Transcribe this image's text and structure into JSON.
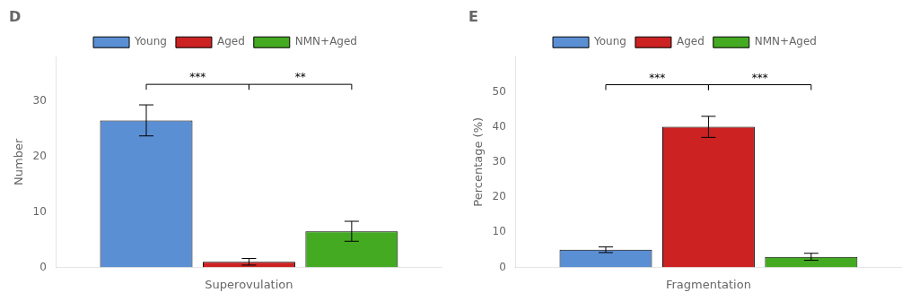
{
  "chart_data": [
    {
      "type": "bar",
      "title": "D",
      "xlabel": "Superovulation",
      "ylabel": "Number",
      "categories": [
        null
      ],
      "series": [
        {
          "name": "Young",
          "color": "#5B8FD4",
          "values": [
            26.5
          ],
          "errors": [
            2.8
          ]
        },
        {
          "name": "Aged",
          "color": "#CC2222",
          "values": [
            1.0
          ],
          "errors": [
            0.6
          ]
        },
        {
          "name": "NMN+Aged",
          "color": "#44AA22",
          "values": [
            6.5
          ],
          "errors": [
            1.8
          ]
        }
      ],
      "ylim": [
        0,
        38
      ],
      "yticks": [
        0,
        10,
        20,
        30
      ],
      "grid": false,
      "legend": "top",
      "tick_labels": "y",
      "annotations": [
        {
          "text": "***",
          "from": "Young",
          "to": "Aged",
          "y": 33
        },
        {
          "text": "**",
          "from": "Aged",
          "to": "NMN+Aged",
          "y": 33
        }
      ]
    },
    {
      "type": "bar",
      "title": "E",
      "xlabel": "Fragmentation",
      "ylabel": "Percentage (%)",
      "categories": [
        null
      ],
      "series": [
        {
          "name": "Young",
          "color": "#5B8FD4",
          "values": [
            5.0
          ],
          "errors": [
            0.8
          ]
        },
        {
          "name": "Aged",
          "color": "#CC2222",
          "values": [
            40.0
          ],
          "errors": [
            3.0
          ]
        },
        {
          "name": "NMN+Aged",
          "color": "#44AA22",
          "values": [
            3.0
          ],
          "errors": [
            1.0
          ]
        }
      ],
      "ylim": [
        0,
        60
      ],
      "yticks": [
        0,
        10,
        20,
        30,
        40,
        50
      ],
      "grid": false,
      "legend": "top",
      "tick_labels": "y",
      "annotations": [
        {
          "text": "***",
          "from": "Young",
          "to": "Aged",
          "y": 52
        },
        {
          "text": "***",
          "from": "Aged",
          "to": "NMN+Aged",
          "y": 52
        }
      ]
    }
  ]
}
